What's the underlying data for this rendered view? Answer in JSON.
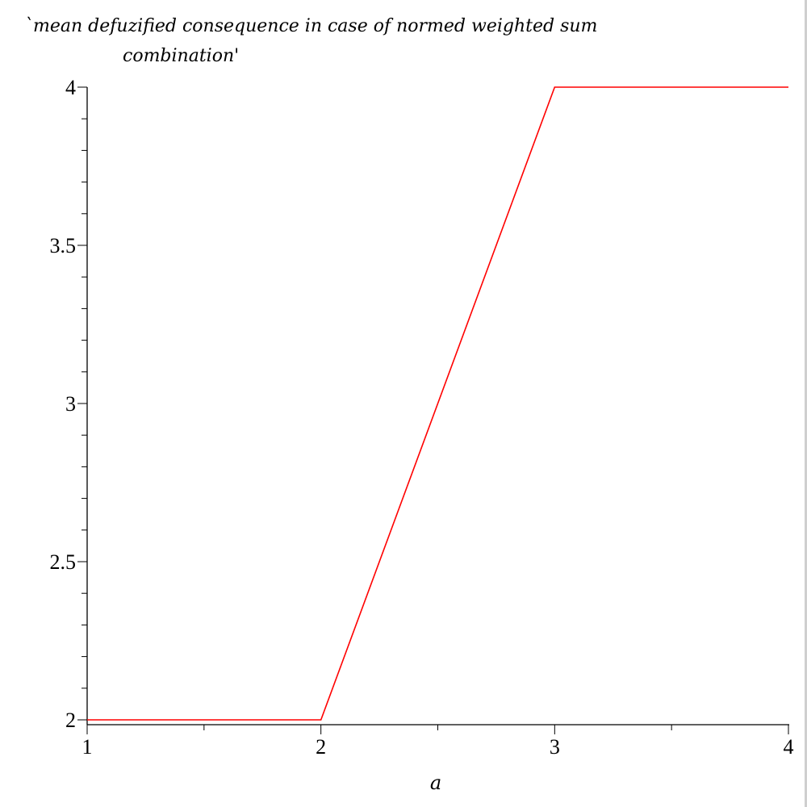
{
  "chart_data": {
    "type": "line",
    "title_lines": [
      "`mean defuzified consequence in case of normed weighted sum",
      "combination'"
    ],
    "xlabel": "a",
    "ylabel": "",
    "xlim": [
      1,
      4
    ],
    "ylim": [
      2,
      4
    ],
    "x_ticks": [
      "1",
      "2",
      "3",
      "4"
    ],
    "y_ticks": [
      "2",
      "2.5",
      "3",
      "3.5",
      "4"
    ],
    "grid": false,
    "series": [
      {
        "color": "#ff0000",
        "x": [
          1,
          2,
          3,
          4
        ],
        "y": [
          2,
          2,
          4,
          4
        ]
      }
    ]
  }
}
